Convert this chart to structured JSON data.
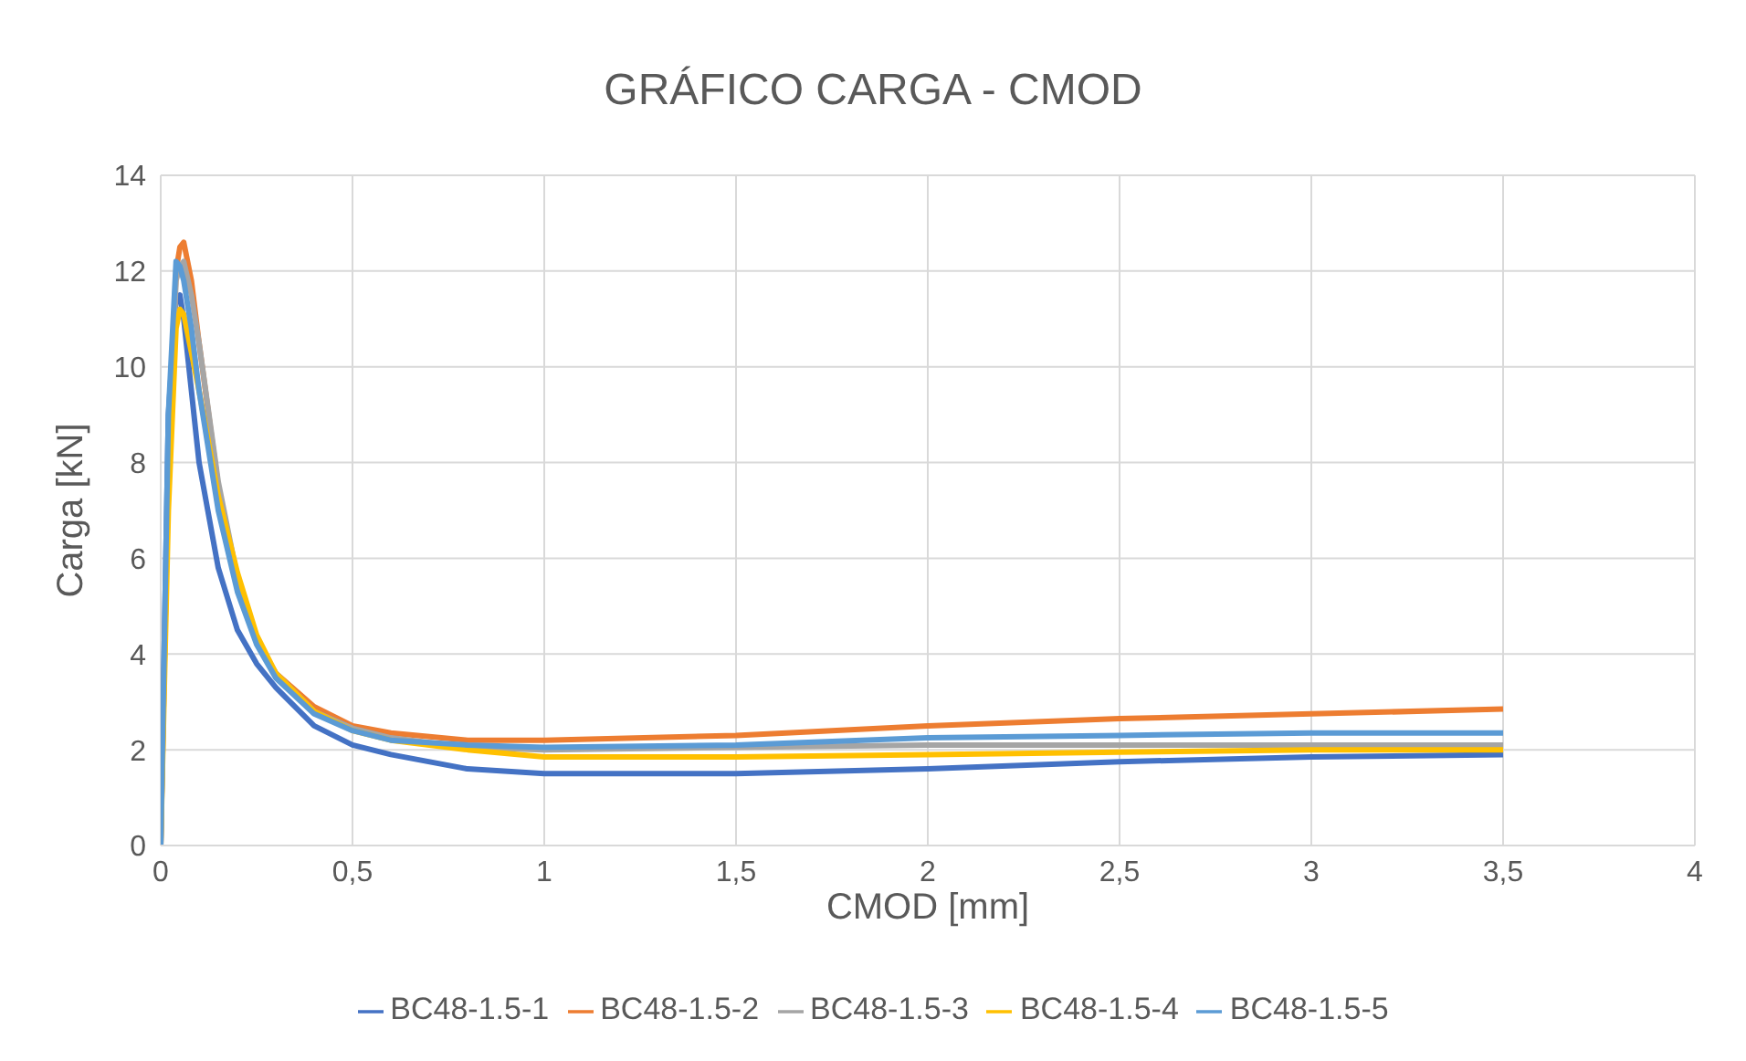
{
  "chart_data": {
    "type": "line",
    "title": "GRÁFICO CARGA - CMOD",
    "xlabel": "CMOD [mm]",
    "ylabel": "Carga [kN]",
    "x": [
      0,
      0.02,
      0.04,
      0.05,
      0.06,
      0.08,
      0.1,
      0.15,
      0.2,
      0.25,
      0.3,
      0.4,
      0.5,
      0.6,
      0.8,
      1,
      1.5,
      2,
      2.5,
      3,
      3.5
    ],
    "series": [
      {
        "name": "BC48-1.5-1",
        "color": "#4472c4",
        "values": [
          0,
          9,
          11.4,
          11.5,
          11,
          9.5,
          8,
          5.8,
          4.5,
          3.8,
          3.3,
          2.5,
          2.1,
          1.9,
          1.6,
          1.5,
          1.5,
          1.6,
          1.75,
          1.85,
          1.9
        ]
      },
      {
        "name": "BC48-1.5-2",
        "color": "#ed7d31",
        "values": [
          0,
          8,
          12,
          12.5,
          12.6,
          11.8,
          10.5,
          7.5,
          5.5,
          4.3,
          3.6,
          2.9,
          2.5,
          2.35,
          2.2,
          2.2,
          2.3,
          2.5,
          2.65,
          2.75,
          2.85
        ]
      },
      {
        "name": "BC48-1.5-3",
        "color": "#a5a5a5",
        "values": [
          0,
          8,
          11.8,
          12.1,
          12.2,
          11.5,
          10.5,
          7.6,
          5.6,
          4.3,
          3.6,
          2.8,
          2.45,
          2.25,
          2.05,
          2.0,
          2.05,
          2.1,
          2.1,
          2.1,
          2.1
        ]
      },
      {
        "name": "BC48-1.5-4",
        "color": "#ffc000",
        "values": [
          0,
          7,
          10.8,
          11.2,
          11.1,
          10.3,
          9.5,
          7.3,
          5.7,
          4.4,
          3.6,
          2.8,
          2.4,
          2.2,
          2.0,
          1.85,
          1.85,
          1.9,
          1.95,
          2.0,
          2.0
        ]
      },
      {
        "name": "BC48-1.5-5",
        "color": "#5b9bd5",
        "values": [
          0,
          9,
          12.2,
          12.1,
          11.8,
          10.8,
          9.5,
          7.0,
          5.3,
          4.2,
          3.5,
          2.75,
          2.4,
          2.2,
          2.1,
          2.05,
          2.1,
          2.25,
          2.3,
          2.35,
          2.35
        ]
      }
    ],
    "xlim": [
      0,
      4
    ],
    "xticks": [
      0,
      {
        "value": 0.5,
        "label": "0,5"
      },
      1,
      {
        "value": 1.5,
        "label": "1,5"
      },
      2,
      {
        "value": 2.5,
        "label": "2,5"
      },
      3,
      {
        "value": 3.5,
        "label": "3,5"
      },
      4
    ],
    "ylim": [
      0,
      14
    ],
    "yticks": [
      0,
      2,
      4,
      6,
      8,
      10,
      12,
      14
    ],
    "grid": true,
    "legend": "bottom",
    "marker": "none",
    "line_style": "solid"
  }
}
